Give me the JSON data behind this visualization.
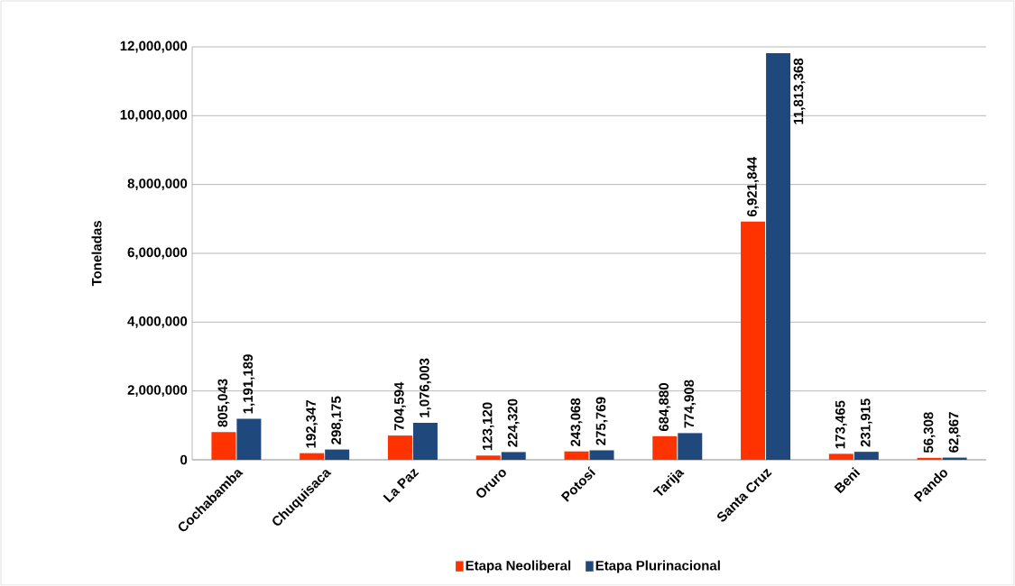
{
  "chart_data": {
    "type": "bar",
    "ylabel": "Toneladas",
    "categories": [
      "Cochabamba",
      "Chuquisaca",
      "La Paz",
      "Oruro",
      "Potosí",
      "Tarija",
      "Santa Cruz",
      "Beni",
      "Pando"
    ],
    "series": [
      {
        "name": "Etapa Neoliberal",
        "color": "#ff3300",
        "values": [
          805043,
          192347,
          704594,
          123120,
          243068,
          684880,
          6921844,
          173465,
          56308
        ],
        "value_labels": [
          "805,043",
          "192,347",
          "704,594",
          "123,120",
          "243,068",
          "684,880",
          "6,921,844",
          "173,465",
          "56,308"
        ]
      },
      {
        "name": "Etapa Plurinacional",
        "color": "#1f497d",
        "values": [
          1191189,
          298175,
          1076003,
          224320,
          275769,
          774908,
          11813368,
          231915,
          62867
        ],
        "value_labels": [
          "1,191,189",
          "298,175",
          "1,076,003",
          "224,320",
          "275,769",
          "774,908",
          "11,813,368",
          "231,915",
          "62,867"
        ]
      }
    ],
    "ylim": [
      0,
      12000000
    ],
    "yticks": [
      {
        "value": 0,
        "label": "0"
      },
      {
        "value": 2000000,
        "label": "2,000,000"
      },
      {
        "value": 4000000,
        "label": "4,000,000"
      },
      {
        "value": 6000000,
        "label": "6,000,000"
      },
      {
        "value": 8000000,
        "label": "8,000,000"
      },
      {
        "value": 10000000,
        "label": "10,000,000"
      },
      {
        "value": 12000000,
        "label": "12,000,000"
      }
    ],
    "grid": "y",
    "legend": "bottom"
  }
}
